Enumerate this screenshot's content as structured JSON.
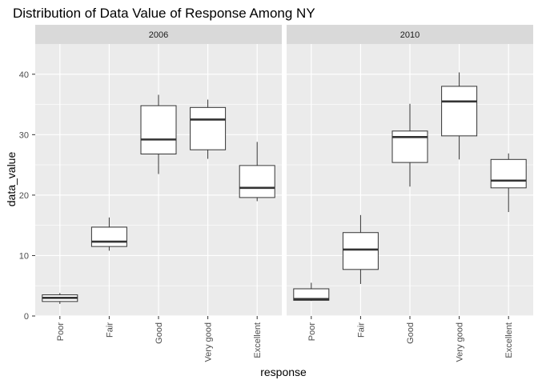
{
  "chart_data": {
    "type": "boxplot",
    "title": "Distribution of Data Value of Response Among NY",
    "xlabel": "response",
    "ylabel": "data_value",
    "ylim": [
      0,
      45
    ],
    "yticks": [
      0,
      10,
      20,
      30,
      40
    ],
    "categories": [
      "Poor",
      "Fair",
      "Good",
      "Very good",
      "Excellent"
    ],
    "grid": true,
    "facets": [
      {
        "label": "2006",
        "boxes": [
          {
            "category": "Poor",
            "whisker_low": 2.0,
            "q1": 2.4,
            "median": 3.0,
            "q3": 3.5,
            "whisker_high": 3.8
          },
          {
            "category": "Fair",
            "whisker_low": 10.8,
            "q1": 11.5,
            "median": 12.3,
            "q3": 14.7,
            "whisker_high": 16.3
          },
          {
            "category": "Good",
            "whisker_low": 23.5,
            "q1": 26.8,
            "median": 29.2,
            "q3": 34.8,
            "whisker_high": 36.6
          },
          {
            "category": "Very good",
            "whisker_low": 26.0,
            "q1": 27.5,
            "median": 32.5,
            "q3": 34.5,
            "whisker_high": 35.8
          },
          {
            "category": "Excellent",
            "whisker_low": 19.0,
            "q1": 19.6,
            "median": 21.2,
            "q3": 24.9,
            "whisker_high": 28.8
          }
        ]
      },
      {
        "label": "2010",
        "boxes": [
          {
            "category": "Poor",
            "whisker_low": 2.5,
            "q1": 2.6,
            "median": 2.8,
            "q3": 4.5,
            "whisker_high": 5.5
          },
          {
            "category": "Fair",
            "whisker_low": 5.3,
            "q1": 7.7,
            "median": 11.0,
            "q3": 13.8,
            "whisker_high": 16.7
          },
          {
            "category": "Good",
            "whisker_low": 21.4,
            "q1": 25.4,
            "median": 29.6,
            "q3": 30.6,
            "whisker_high": 35.1
          },
          {
            "category": "Very good",
            "whisker_low": 25.9,
            "q1": 29.8,
            "median": 35.5,
            "q3": 38.0,
            "whisker_high": 40.3
          },
          {
            "category": "Excellent",
            "whisker_low": 17.2,
            "q1": 21.2,
            "median": 22.4,
            "q3": 25.9,
            "whisker_high": 26.9
          }
        ]
      }
    ]
  }
}
